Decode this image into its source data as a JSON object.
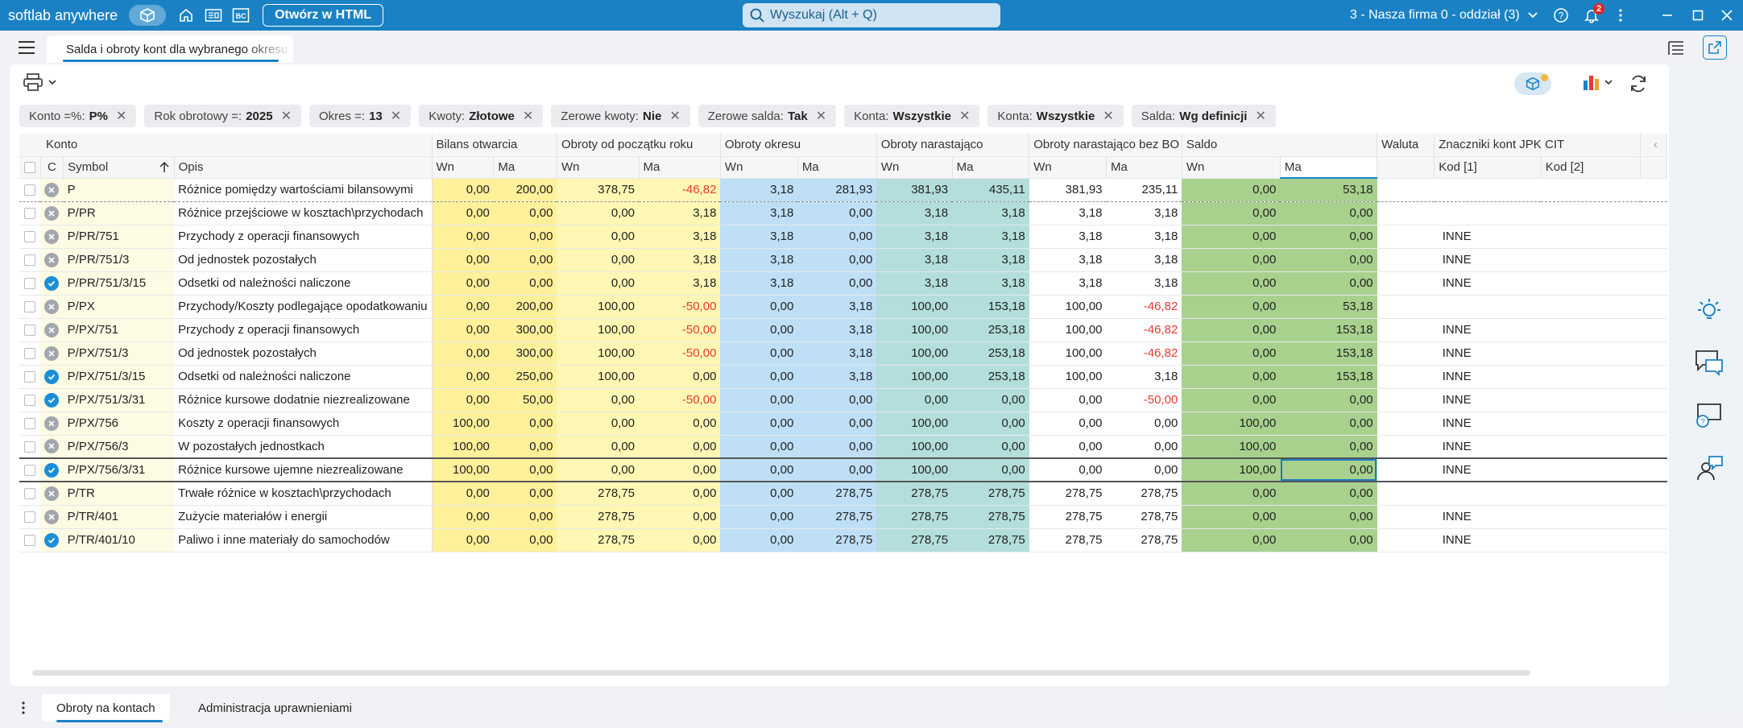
{
  "topbar": {
    "brand": "softlab anywhere",
    "open_html_label": "Otwórz w HTML",
    "search_placeholder": "Wyszukaj (Alt + Q)",
    "company": "3 - Nasza firma 0 - oddział (3)",
    "notification_count": "2",
    "icons": [
      "cube-icon",
      "home-icon",
      "document-icon",
      "bc-icon",
      "search-icon",
      "help-icon",
      "bell-icon",
      "more-icon",
      "minimize-icon",
      "maximize-icon",
      "close-icon"
    ],
    "bc_label": "BC"
  },
  "document_tab": {
    "title": "Salda i obroty kont dla wybranego okresu"
  },
  "filters": [
    {
      "label": "Konto =%:",
      "value": "P%"
    },
    {
      "label": "Rok obrotowy =:",
      "value": "2025"
    },
    {
      "label": "Okres =:",
      "value": "13"
    },
    {
      "label": "Kwoty:",
      "value": "Złotowe"
    },
    {
      "label": "Zerowe kwoty:",
      "value": "Nie"
    },
    {
      "label": "Zerowe salda:",
      "value": "Tak"
    },
    {
      "label": "Konta:",
      "value": "Wszystkie"
    },
    {
      "label": "Konta:",
      "value": "Wszystkie"
    },
    {
      "label": "Salda:",
      "value": "Wg definicji"
    }
  ],
  "grid": {
    "group_headers": {
      "konto": "Konto",
      "bilans": "Bilans otwarcia",
      "obroty_rok": "Obroty od początku roku",
      "obroty_okres": "Obroty okresu",
      "narastajaco": "Obroty narastająco",
      "narastajaco_bo": "Obroty narastająco bez BO",
      "saldo": "Saldo",
      "waluta": "Waluta",
      "jpk": "Znaczniki kont JPK CIT"
    },
    "sub_headers": {
      "c": "C",
      "symbol": "Symbol",
      "opis": "Opis",
      "wn": "Wn",
      "ma": "Ma",
      "kod1": "Kod [1]",
      "kod2": "Kod [2]"
    },
    "rows": [
      {
        "status": "grey",
        "symbol": "P",
        "opis": "Różnice pomiędzy wartościami bilansowymi",
        "bo_wn": "0,00",
        "bo_ma": "200,00",
        "or_wn": "378,75",
        "or_ma": "-46,82",
        "oo_wn": "3,18",
        "oo_ma": "281,93",
        "on_wn": "381,93",
        "on_ma": "435,11",
        "nb_wn": "381,93",
        "nb_ma": "235,11",
        "s_wn": "0,00",
        "s_ma": "53,18",
        "kod1": ""
      },
      {
        "status": "grey",
        "symbol": "P/PR",
        "opis": "Różnice przejściowe  w kosztach\\przychodach",
        "bo_wn": "0,00",
        "bo_ma": "0,00",
        "or_wn": "0,00",
        "or_ma": "3,18",
        "oo_wn": "3,18",
        "oo_ma": "0,00",
        "on_wn": "3,18",
        "on_ma": "3,18",
        "nb_wn": "3,18",
        "nb_ma": "3,18",
        "s_wn": "0,00",
        "s_ma": "0,00",
        "kod1": ""
      },
      {
        "status": "grey",
        "symbol": "P/PR/751",
        "opis": "Przychody z operacji finansowych",
        "bo_wn": "0,00",
        "bo_ma": "0,00",
        "or_wn": "0,00",
        "or_ma": "3,18",
        "oo_wn": "3,18",
        "oo_ma": "0,00",
        "on_wn": "3,18",
        "on_ma": "3,18",
        "nb_wn": "3,18",
        "nb_ma": "3,18",
        "s_wn": "0,00",
        "s_ma": "0,00",
        "kod1": "INNE"
      },
      {
        "status": "grey",
        "symbol": "P/PR/751/3",
        "opis": "Od jednostek pozostałych",
        "bo_wn": "0,00",
        "bo_ma": "0,00",
        "or_wn": "0,00",
        "or_ma": "3,18",
        "oo_wn": "3,18",
        "oo_ma": "0,00",
        "on_wn": "3,18",
        "on_ma": "3,18",
        "nb_wn": "3,18",
        "nb_ma": "3,18",
        "s_wn": "0,00",
        "s_ma": "0,00",
        "kod1": "INNE"
      },
      {
        "status": "blue",
        "symbol": "P/PR/751/3/15",
        "opis": "Odsetki od należności naliczone",
        "bo_wn": "0,00",
        "bo_ma": "0,00",
        "or_wn": "0,00",
        "or_ma": "3,18",
        "oo_wn": "3,18",
        "oo_ma": "0,00",
        "on_wn": "3,18",
        "on_ma": "3,18",
        "nb_wn": "3,18",
        "nb_ma": "3,18",
        "s_wn": "0,00",
        "s_ma": "0,00",
        "kod1": "INNE"
      },
      {
        "status": "grey",
        "symbol": "P/PX",
        "opis": "Przychody/Koszty podlegające opodatkowaniu",
        "bo_wn": "0,00",
        "bo_ma": "200,00",
        "or_wn": "100,00",
        "or_ma": "-50,00",
        "oo_wn": "0,00",
        "oo_ma": "3,18",
        "on_wn": "100,00",
        "on_ma": "153,18",
        "nb_wn": "100,00",
        "nb_ma": "-46,82",
        "s_wn": "0,00",
        "s_ma": "53,18",
        "kod1": ""
      },
      {
        "status": "grey",
        "symbol": "P/PX/751",
        "opis": "Przychody z operacji finansowych",
        "bo_wn": "0,00",
        "bo_ma": "300,00",
        "or_wn": "100,00",
        "or_ma": "-50,00",
        "oo_wn": "0,00",
        "oo_ma": "3,18",
        "on_wn": "100,00",
        "on_ma": "253,18",
        "nb_wn": "100,00",
        "nb_ma": "-46,82",
        "s_wn": "0,00",
        "s_ma": "153,18",
        "kod1": "INNE"
      },
      {
        "status": "grey",
        "symbol": "P/PX/751/3",
        "opis": "Od jednostek pozostałych",
        "bo_wn": "0,00",
        "bo_ma": "300,00",
        "or_wn": "100,00",
        "or_ma": "-50,00",
        "oo_wn": "0,00",
        "oo_ma": "3,18",
        "on_wn": "100,00",
        "on_ma": "253,18",
        "nb_wn": "100,00",
        "nb_ma": "-46,82",
        "s_wn": "0,00",
        "s_ma": "153,18",
        "kod1": "INNE"
      },
      {
        "status": "blue",
        "symbol": "P/PX/751/3/15",
        "opis": "Odsetki od należności naliczone",
        "bo_wn": "0,00",
        "bo_ma": "250,00",
        "or_wn": "100,00",
        "or_ma": "0,00",
        "oo_wn": "0,00",
        "oo_ma": "3,18",
        "on_wn": "100,00",
        "on_ma": "253,18",
        "nb_wn": "100,00",
        "nb_ma": "3,18",
        "s_wn": "0,00",
        "s_ma": "153,18",
        "kod1": "INNE"
      },
      {
        "status": "blue",
        "symbol": "P/PX/751/3/31",
        "opis": "Różnice kursowe dodatnie niezrealizowane",
        "bo_wn": "0,00",
        "bo_ma": "50,00",
        "or_wn": "0,00",
        "or_ma": "-50,00",
        "oo_wn": "0,00",
        "oo_ma": "0,00",
        "on_wn": "0,00",
        "on_ma": "0,00",
        "nb_wn": "0,00",
        "nb_ma": "-50,00",
        "s_wn": "0,00",
        "s_ma": "0,00",
        "kod1": "INNE"
      },
      {
        "status": "grey",
        "symbol": "P/PX/756",
        "opis": "Koszty z operacji finansowych",
        "bo_wn": "100,00",
        "bo_ma": "0,00",
        "or_wn": "0,00",
        "or_ma": "0,00",
        "oo_wn": "0,00",
        "oo_ma": "0,00",
        "on_wn": "100,00",
        "on_ma": "0,00",
        "nb_wn": "0,00",
        "nb_ma": "0,00",
        "s_wn": "100,00",
        "s_ma": "0,00",
        "kod1": "INNE"
      },
      {
        "status": "grey",
        "symbol": "P/PX/756/3",
        "opis": "W pozostałych jednostkach",
        "bo_wn": "100,00",
        "bo_ma": "0,00",
        "or_wn": "0,00",
        "or_ma": "0,00",
        "oo_wn": "0,00",
        "oo_ma": "0,00",
        "on_wn": "100,00",
        "on_ma": "0,00",
        "nb_wn": "0,00",
        "nb_ma": "0,00",
        "s_wn": "100,00",
        "s_ma": "0,00",
        "kod1": "INNE"
      },
      {
        "status": "blue",
        "symbol": "P/PX/756/3/31",
        "opis": "Różnice kursowe ujemne niezrealizowane",
        "bo_wn": "100,00",
        "bo_ma": "0,00",
        "or_wn": "0,00",
        "or_ma": "0,00",
        "oo_wn": "0,00",
        "oo_ma": "0,00",
        "on_wn": "100,00",
        "on_ma": "0,00",
        "nb_wn": "0,00",
        "nb_ma": "0,00",
        "s_wn": "100,00",
        "s_ma": "0,00",
        "kod1": "INNE"
      },
      {
        "status": "grey",
        "symbol": "P/TR",
        "opis": "Trwałe różnice w kosztach\\przychodach",
        "bo_wn": "0,00",
        "bo_ma": "0,00",
        "or_wn": "278,75",
        "or_ma": "0,00",
        "oo_wn": "0,00",
        "oo_ma": "278,75",
        "on_wn": "278,75",
        "on_ma": "278,75",
        "nb_wn": "278,75",
        "nb_ma": "278,75",
        "s_wn": "0,00",
        "s_ma": "0,00",
        "kod1": ""
      },
      {
        "status": "grey",
        "symbol": "P/TR/401",
        "opis": "Zużycie materiałów i energii",
        "bo_wn": "0,00",
        "bo_ma": "0,00",
        "or_wn": "278,75",
        "or_ma": "0,00",
        "oo_wn": "0,00",
        "oo_ma": "278,75",
        "on_wn": "278,75",
        "on_ma": "278,75",
        "nb_wn": "278,75",
        "nb_ma": "278,75",
        "s_wn": "0,00",
        "s_ma": "0,00",
        "kod1": "INNE"
      },
      {
        "status": "blue",
        "symbol": "P/TR/401/10",
        "opis": "Paliwo i inne materiały do samochodów",
        "bo_wn": "0,00",
        "bo_ma": "0,00",
        "or_wn": "278,75",
        "or_ma": "0,00",
        "oo_wn": "0,00",
        "oo_ma": "278,75",
        "on_wn": "278,75",
        "on_ma": "278,75",
        "nb_wn": "278,75",
        "nb_ma": "278,75",
        "s_wn": "0,00",
        "s_ma": "0,00",
        "kod1": "INNE"
      }
    ]
  },
  "bottom_tabs": [
    {
      "label": "Obroty na kontach"
    },
    {
      "label": "Administracja uprawnieniami"
    }
  ],
  "colors": {
    "accent": "#1a82c4",
    "negative": "#e53935",
    "bilans": "#fff09a",
    "obroty_rok": "#fff7b3",
    "obroty_okres": "#bfdff6",
    "narastajaco": "#b3dedb",
    "saldo": "#a9d18e"
  }
}
